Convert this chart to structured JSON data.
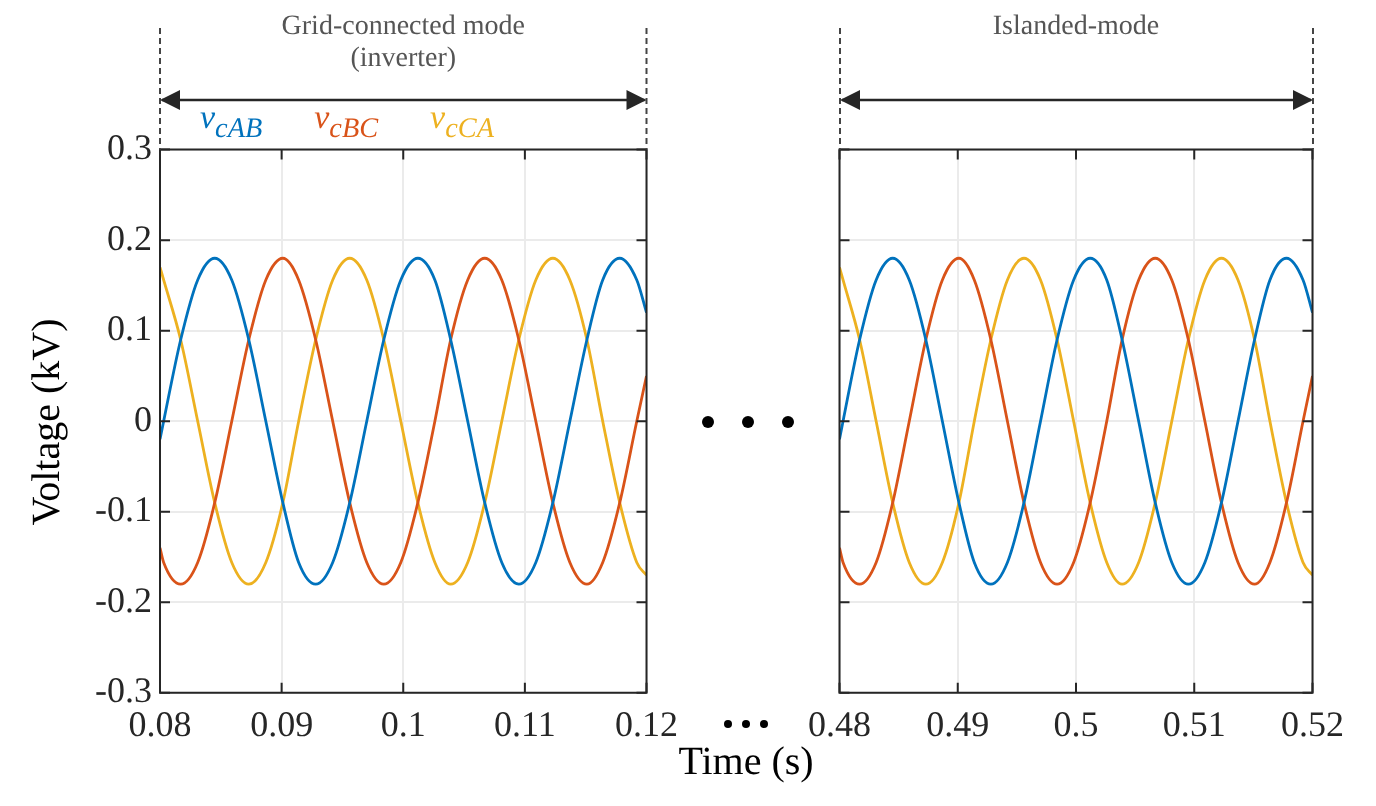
{
  "chart_data": [
    {
      "type": "line",
      "ylabel": "Voltage (kV)",
      "xlabel": "Time (s)",
      "annotations": [
        "Grid-connected mode (inverter)"
      ],
      "xlim": [
        0.08,
        0.12
      ],
      "xticks": [
        0.08,
        0.09,
        0.1,
        0.11,
        0.12
      ],
      "ylim": [
        -0.3,
        0.3
      ],
      "yticks": [
        -0.3,
        -0.2,
        -0.1,
        0,
        0.1,
        0.2,
        0.3
      ],
      "grid": true,
      "legend": "top",
      "x": [
        0.08,
        0.0803,
        0.0817,
        0.0831,
        0.0845,
        0.0859,
        0.0873,
        0.0887,
        0.0901,
        0.0914,
        0.0928,
        0.0942,
        0.0956,
        0.097,
        0.0984,
        0.0998,
        0.1012,
        0.1026,
        0.1039,
        0.1053,
        0.1067,
        0.1081,
        0.1095,
        0.1109,
        0.1123,
        0.1137,
        0.1151,
        0.1164,
        0.1178,
        0.1192,
        0.12
      ],
      "series": [
        {
          "name": "v$_{cAB}$",
          "color": "#0072bd",
          "values": [
            -0.02,
            0,
            0.09,
            0.156,
            0.18,
            0.156,
            0.09,
            0,
            -0.09,
            -0.156,
            -0.18,
            -0.156,
            -0.09,
            0,
            0.09,
            0.156,
            0.18,
            0.156,
            0.09,
            0,
            -0.09,
            -0.156,
            -0.18,
            -0.156,
            -0.09,
            0,
            0.09,
            0.156,
            0.18,
            0.156,
            0.12
          ]
        },
        {
          "name": "v$_{cBC}$",
          "color": "#d95319",
          "values": [
            -0.14,
            -0.156,
            -0.18,
            -0.156,
            -0.09,
            0,
            0.09,
            0.156,
            0.18,
            0.156,
            0.09,
            0,
            -0.09,
            -0.156,
            -0.18,
            -0.156,
            -0.09,
            0,
            0.09,
            0.156,
            0.18,
            0.156,
            0.09,
            0,
            -0.09,
            -0.156,
            -0.18,
            -0.156,
            -0.09,
            0,
            0.05
          ]
        },
        {
          "name": "v$_{cCA}$",
          "color": "#edb120",
          "values": [
            0.17,
            0.156,
            0.09,
            0,
            -0.09,
            -0.156,
            -0.18,
            -0.156,
            -0.09,
            0,
            0.09,
            0.156,
            0.18,
            0.156,
            0.09,
            0,
            -0.09,
            -0.156,
            -0.18,
            -0.156,
            -0.09,
            0,
            0.09,
            0.156,
            0.18,
            0.156,
            0.09,
            0,
            -0.09,
            -0.156,
            -0.17
          ]
        }
      ]
    },
    {
      "type": "line",
      "annotations": [
        "Islanded-mode"
      ],
      "xlim": [
        0.48,
        0.52
      ],
      "xticks": [
        0.48,
        0.49,
        0.5,
        0.51,
        0.52
      ],
      "ylim": [
        -0.3,
        0.3
      ],
      "yticks": [
        -0.3,
        -0.2,
        -0.1,
        0,
        0.1,
        0.2,
        0.3
      ],
      "grid": true,
      "tick_labels": "x",
      "x": [
        0.48,
        0.4803,
        0.4817,
        0.4831,
        0.4845,
        0.4859,
        0.4873,
        0.4887,
        0.4901,
        0.4914,
        0.4928,
        0.4942,
        0.4956,
        0.497,
        0.4984,
        0.4998,
        0.5012,
        0.5026,
        0.5039,
        0.5053,
        0.5067,
        0.5081,
        0.5095,
        0.5109,
        0.5123,
        0.5137,
        0.5151,
        0.5164,
        0.5178,
        0.5192,
        0.52
      ],
      "series": [
        {
          "color": "#0072bd",
          "values": [
            -0.02,
            0,
            0.09,
            0.156,
            0.18,
            0.156,
            0.09,
            0,
            -0.09,
            -0.156,
            -0.18,
            -0.156,
            -0.09,
            0,
            0.09,
            0.156,
            0.18,
            0.156,
            0.09,
            0,
            -0.09,
            -0.156,
            -0.18,
            -0.156,
            -0.09,
            0,
            0.09,
            0.156,
            0.18,
            0.156,
            0.12
          ]
        },
        {
          "color": "#d95319",
          "values": [
            -0.14,
            -0.156,
            -0.18,
            -0.156,
            -0.09,
            0,
            0.09,
            0.156,
            0.18,
            0.156,
            0.09,
            0,
            -0.09,
            -0.156,
            -0.18,
            -0.156,
            -0.09,
            0,
            0.09,
            0.156,
            0.18,
            0.156,
            0.09,
            0,
            -0.09,
            -0.156,
            -0.18,
            -0.156,
            -0.09,
            0,
            0.05
          ]
        },
        {
          "color": "#edb120",
          "values": [
            0.17,
            0.156,
            0.09,
            0,
            -0.09,
            -0.156,
            -0.18,
            -0.156,
            -0.09,
            0,
            0.09,
            0.156,
            0.18,
            0.156,
            0.09,
            0,
            -0.09,
            -0.156,
            -0.18,
            -0.156,
            -0.09,
            0,
            0.09,
            0.156,
            0.18,
            0.156,
            0.09,
            0,
            -0.09,
            -0.156,
            -0.17
          ]
        }
      ]
    }
  ]
}
